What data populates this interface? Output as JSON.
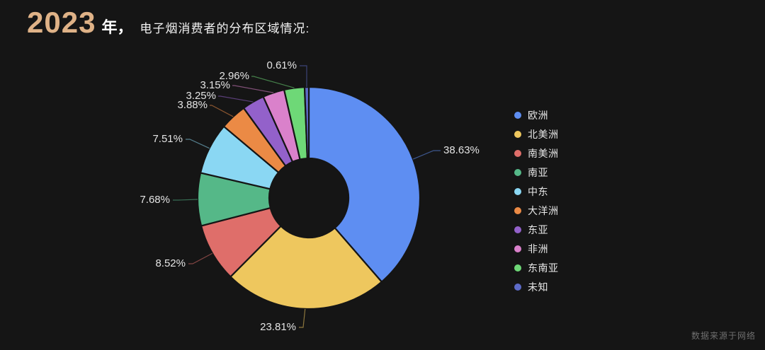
{
  "title": {
    "year": "2023",
    "suffix": "年，",
    "description": "电子烟消费者的分布区域情况:"
  },
  "footer": {
    "source": "数据来源于网络"
  },
  "colors": {
    "background": "#151515",
    "title_year": "#dfb287",
    "title_text": "#ffffff",
    "percent_label_text": "#e4e4e4",
    "legend_text": "#e8e8e8",
    "footer_text": "#6f6f6f"
  },
  "chart_data": {
    "type": "pie",
    "subtype": "donut",
    "title": "2023年，电子烟消费者的分布区域情况",
    "unit": "%",
    "start_angle": "top",
    "direction": "clockwise",
    "legend_position": "right",
    "total": 100,
    "series": [
      {
        "name": "欧洲",
        "value": 38.63,
        "label": "38.63%",
        "color": "#5e8ef2"
      },
      {
        "name": "北美洲",
        "value": 23.81,
        "label": "23.81%",
        "color": "#eec75e"
      },
      {
        "name": "南美洲",
        "value": 8.52,
        "label": "8.52%",
        "color": "#df6e6a"
      },
      {
        "name": "南亚",
        "value": 7.68,
        "label": "7.68%",
        "color": "#55b888"
      },
      {
        "name": "中东",
        "value": 7.51,
        "label": "7.51%",
        "color": "#8ad7f3"
      },
      {
        "name": "大洋洲",
        "value": 3.88,
        "label": "3.88%",
        "color": "#eb8a45"
      },
      {
        "name": "东亚",
        "value": 3.25,
        "label": "3.25%",
        "color": "#9361ca"
      },
      {
        "name": "非洲",
        "value": 3.15,
        "label": "3.15%",
        "color": "#da81cb"
      },
      {
        "name": "东南亚",
        "value": 2.96,
        "label": "2.96%",
        "color": "#6ed877"
      },
      {
        "name": "未知",
        "value": 0.61,
        "label": "0.61%",
        "color": "#5d6bc8"
      }
    ]
  }
}
